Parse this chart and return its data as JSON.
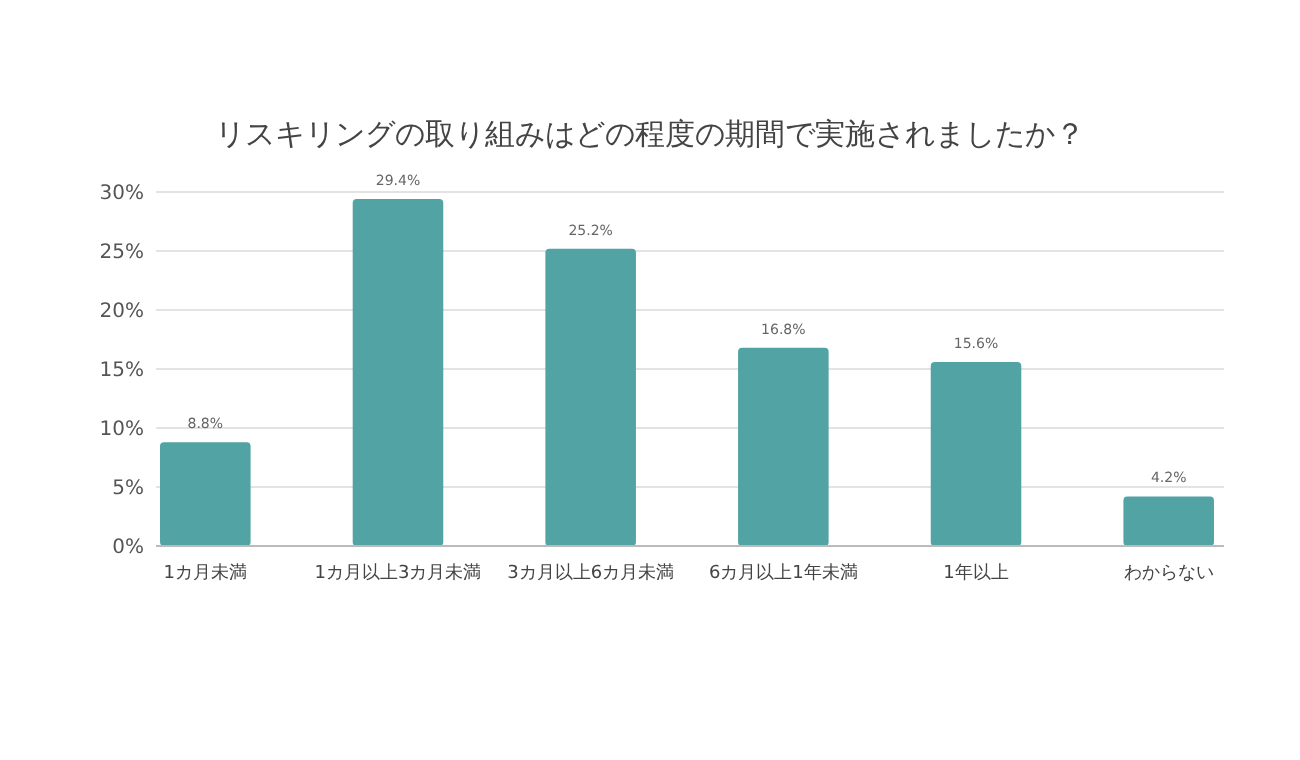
{
  "chart_data": {
    "type": "bar",
    "title": "リスキリングの取り組みはどの程度の期間で実施されましたか？",
    "categories": [
      "1カ月未満",
      "1カ月以上3カ月未満",
      "3カ月以上6カ月未満",
      "6カ月以上1年未満",
      "1年以上",
      "わからない"
    ],
    "values": [
      8.8,
      29.4,
      25.2,
      16.8,
      15.6,
      4.2
    ],
    "value_labels": [
      "8.8%",
      "29.4%",
      "25.2%",
      "16.8%",
      "15.6%",
      "4.2%"
    ],
    "color": "#52a3a3",
    "ylim": [
      0,
      30
    ],
    "yticks": [
      {
        "value": 0,
        "label": "0%"
      },
      {
        "value": 5,
        "label": "5%"
      },
      {
        "value": 10,
        "label": "10%"
      },
      {
        "value": 15,
        "label": "15%"
      },
      {
        "value": 20,
        "label": "20%"
      },
      {
        "value": 25,
        "label": "25%"
      },
      {
        "value": 30,
        "label": "30%"
      }
    ],
    "grid": "y"
  }
}
